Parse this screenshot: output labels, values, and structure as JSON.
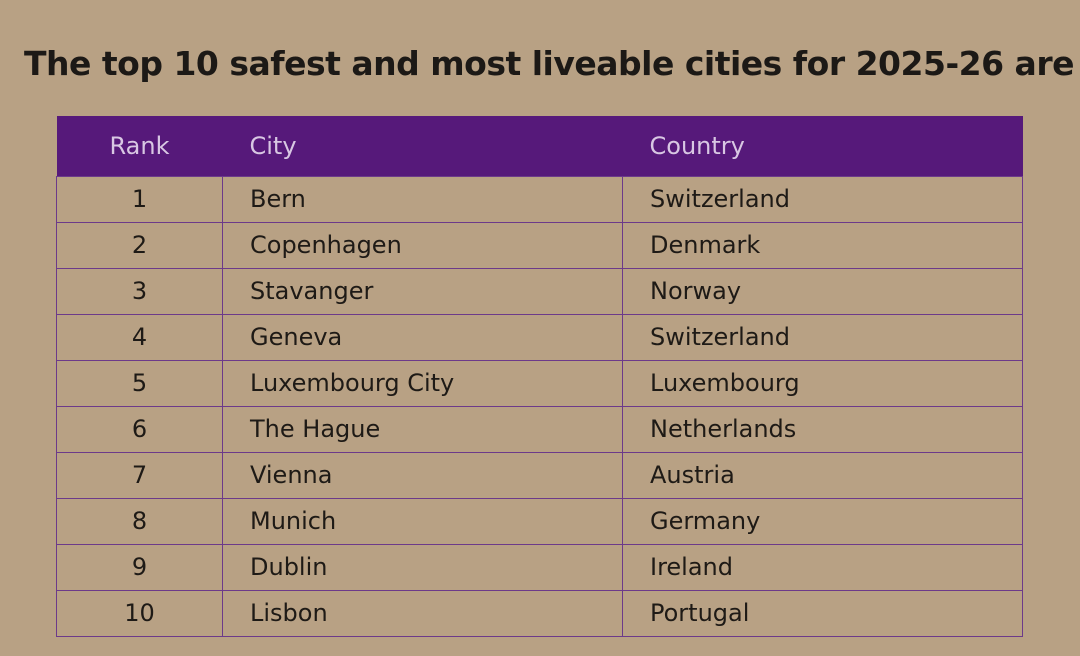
{
  "title": "The top 10 safest and most liveable cities for 2025-26 are",
  "colors": {
    "background": "#b8a184",
    "header": "#56197a",
    "border": "#6c3a8a"
  },
  "table": {
    "headers": {
      "rank": "Rank",
      "city": "City",
      "country": "Country"
    },
    "rows": [
      {
        "rank": "1",
        "city": "Bern",
        "country": "Switzerland"
      },
      {
        "rank": "2",
        "city": "Copenhagen",
        "country": "Denmark"
      },
      {
        "rank": "3",
        "city": "Stavanger",
        "country": "Norway"
      },
      {
        "rank": "4",
        "city": "Geneva",
        "country": "Switzerland"
      },
      {
        "rank": "5",
        "city": "Luxembourg City",
        "country": "Luxembourg"
      },
      {
        "rank": "6",
        "city": "The Hague",
        "country": "Netherlands"
      },
      {
        "rank": "7",
        "city": "Vienna",
        "country": "Austria"
      },
      {
        "rank": "8",
        "city": "Munich",
        "country": "Germany"
      },
      {
        "rank": "9",
        "city": "Dublin",
        "country": "Ireland"
      },
      {
        "rank": "10",
        "city": "Lisbon",
        "country": "Portugal"
      }
    ]
  }
}
